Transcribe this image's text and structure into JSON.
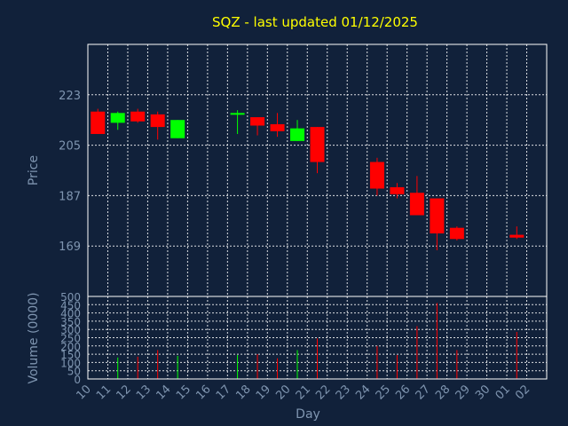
{
  "title": "SQZ - last updated 01/12/2025",
  "chart_data": [
    {
      "type": "candlestick",
      "ylabel": "Price",
      "ylim": [
        151,
        241
      ],
      "yticks": [
        169,
        187,
        205,
        223
      ],
      "up_color": "#00ff00",
      "down_color": "#ff0000",
      "grid": true,
      "x": [
        "10",
        "11",
        "12",
        "13",
        "14",
        "17",
        "18",
        "19",
        "20",
        "21",
        "24",
        "25",
        "26",
        "27",
        "28",
        "01"
      ],
      "open": [
        217.0,
        213.0,
        217.0,
        216.0,
        207.5,
        216.0,
        215.0,
        212.5,
        206.5,
        211.5,
        199.0,
        190.0,
        188.0,
        186.0,
        175.5,
        173.0
      ],
      "high": [
        218.0,
        217.0,
        218.0,
        217.0,
        214.0,
        217.5,
        215.0,
        216.5,
        214.0,
        211.5,
        200.5,
        191.5,
        194.0,
        186.0,
        176.0,
        176.0
      ],
      "low": [
        209.0,
        210.5,
        213.0,
        207.0,
        207.5,
        209.0,
        208.5,
        208.0,
        206.5,
        195.0,
        187.0,
        186.0,
        180.0,
        167.5,
        171.0,
        171.5
      ],
      "close": [
        209.0,
        216.5,
        213.5,
        211.5,
        214.0,
        216.5,
        212.0,
        210.0,
        211.0,
        199.0,
        189.5,
        187.5,
        180.0,
        173.5,
        171.5,
        172.0
      ]
    },
    {
      "type": "bar",
      "ylabel": "Volume (0000)",
      "xlabel": "Day",
      "ylim": [
        0,
        500
      ],
      "yticks": [
        0,
        50,
        100,
        150,
        200,
        250,
        300,
        350,
        400,
        450,
        500
      ],
      "x_tick_labels": [
        "10",
        "11",
        "12",
        "13",
        "14",
        "15",
        "16",
        "17",
        "18",
        "19",
        "20",
        "21",
        "22",
        "23",
        "24",
        "25",
        "26",
        "27",
        "28",
        "29",
        "30",
        "01",
        "02"
      ],
      "x": [
        "10",
        "11",
        "12",
        "13",
        "14",
        "17",
        "18",
        "19",
        "20",
        "21",
        "24",
        "25",
        "26",
        "27",
        "28",
        "01"
      ],
      "values": [
        0,
        130,
        135,
        175,
        140,
        145,
        150,
        125,
        175,
        245,
        200,
        145,
        320,
        460,
        175,
        285
      ],
      "colors": [
        "#ff0000",
        "#00ff00",
        "#ff0000",
        "#ff0000",
        "#00ff00",
        "#00ff00",
        "#ff0000",
        "#ff0000",
        "#00ff00",
        "#ff0000",
        "#ff0000",
        "#ff0000",
        "#ff0000",
        "#ff0000",
        "#ff0000",
        "#ff0000"
      ],
      "grid": true
    }
  ]
}
